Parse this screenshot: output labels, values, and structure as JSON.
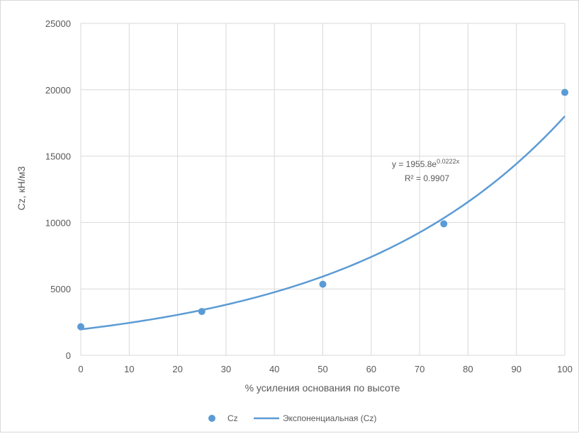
{
  "chart_data": {
    "type": "scatter",
    "xlabel": "% усиления основания по высоте",
    "ylabel": "Cz, кН/м3",
    "xlim": [
      0,
      100
    ],
    "ylim": [
      0,
      25000
    ],
    "x_ticks": [
      0,
      10,
      20,
      30,
      40,
      50,
      60,
      70,
      80,
      90,
      100
    ],
    "y_ticks": [
      0,
      5000,
      10000,
      15000,
      20000,
      25000
    ],
    "grid": true,
    "legend_position": "bottom",
    "series": [
      {
        "name": "Cz",
        "color": "#5b9bd5",
        "x": [
          0,
          25,
          50,
          75,
          100
        ],
        "y": [
          2150,
          3300,
          5350,
          9900,
          19800
        ]
      }
    ],
    "trendline": {
      "name": "Экспоненциальная (Cz)",
      "type": "exponential",
      "a": 1955.8,
      "b": 0.0222,
      "color": "#5b9bd5"
    },
    "annotation": {
      "equation_base": "y = 1955.8e",
      "equation_exp": "0.0222x",
      "r_squared": "R² = 0.9907"
    }
  }
}
